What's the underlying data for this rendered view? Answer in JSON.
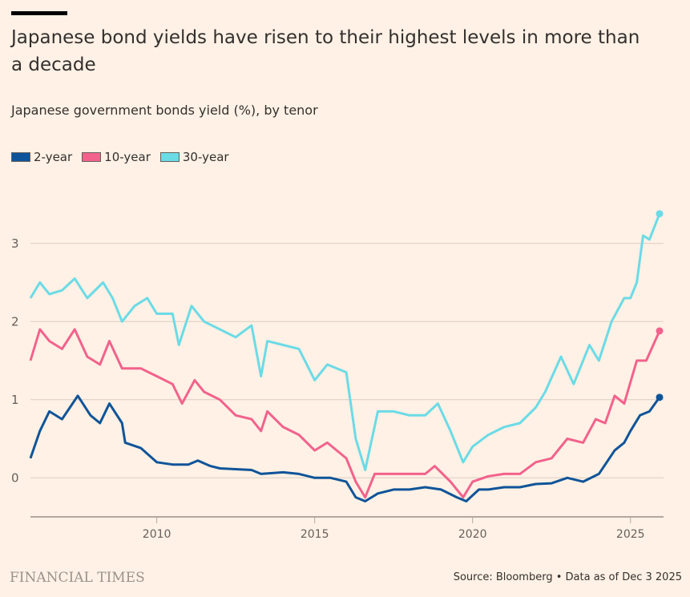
{
  "header": {
    "title": "Japanese bond yields have risen to their highest levels in more than a decade",
    "subtitle": "Japanese government bonds yield (%), by tenor"
  },
  "footer": {
    "brand": "FINANCIAL TIMES",
    "source": "Source: Bloomberg • Data as of Dec 3 2025"
  },
  "chart_data": {
    "type": "line",
    "title": "Japanese bond yields have risen to their highest levels in more than a decade",
    "ylabel": "Japanese government bonds yield (%)",
    "xlim": [
      2006.0,
      2025.92
    ],
    "ylim": [
      -0.5,
      3.5
    ],
    "xticks": [
      2010,
      2015,
      2020,
      2025
    ],
    "yticks": [
      0,
      1,
      2,
      3
    ],
    "grid": true,
    "legend": "top-left",
    "series": [
      {
        "name": "2-year",
        "color": "#0f5499",
        "points": [
          [
            2006.0,
            0.25
          ],
          [
            2006.3,
            0.6
          ],
          [
            2006.6,
            0.85
          ],
          [
            2007.0,
            0.75
          ],
          [
            2007.5,
            1.05
          ],
          [
            2007.9,
            0.8
          ],
          [
            2008.2,
            0.7
          ],
          [
            2008.5,
            0.95
          ],
          [
            2008.9,
            0.7
          ],
          [
            2009.0,
            0.45
          ],
          [
            2009.5,
            0.38
          ],
          [
            2010.0,
            0.2
          ],
          [
            2010.5,
            0.17
          ],
          [
            2011.0,
            0.17
          ],
          [
            2011.3,
            0.22
          ],
          [
            2011.7,
            0.15
          ],
          [
            2012.0,
            0.12
          ],
          [
            2013.0,
            0.1
          ],
          [
            2013.3,
            0.05
          ],
          [
            2014.0,
            0.07
          ],
          [
            2014.5,
            0.05
          ],
          [
            2015.0,
            0.0
          ],
          [
            2015.5,
            0.0
          ],
          [
            2016.0,
            -0.05
          ],
          [
            2016.3,
            -0.25
          ],
          [
            2016.6,
            -0.3
          ],
          [
            2017.0,
            -0.2
          ],
          [
            2017.5,
            -0.15
          ],
          [
            2018.0,
            -0.15
          ],
          [
            2018.5,
            -0.12
          ],
          [
            2019.0,
            -0.15
          ],
          [
            2019.5,
            -0.25
          ],
          [
            2019.8,
            -0.3
          ],
          [
            2020.2,
            -0.15
          ],
          [
            2020.5,
            -0.15
          ],
          [
            2021.0,
            -0.12
          ],
          [
            2021.5,
            -0.12
          ],
          [
            2022.0,
            -0.08
          ],
          [
            2022.5,
            -0.07
          ],
          [
            2023.0,
            0.0
          ],
          [
            2023.5,
            -0.05
          ],
          [
            2024.0,
            0.05
          ],
          [
            2024.5,
            0.35
          ],
          [
            2024.8,
            0.45
          ],
          [
            2025.0,
            0.6
          ],
          [
            2025.3,
            0.8
          ],
          [
            2025.6,
            0.85
          ],
          [
            2025.92,
            1.03
          ]
        ]
      },
      {
        "name": "10-year",
        "color": "#f2628c",
        "points": [
          [
            2006.0,
            1.5
          ],
          [
            2006.3,
            1.9
          ],
          [
            2006.6,
            1.75
          ],
          [
            2007.0,
            1.65
          ],
          [
            2007.4,
            1.9
          ],
          [
            2007.8,
            1.55
          ],
          [
            2008.2,
            1.45
          ],
          [
            2008.5,
            1.75
          ],
          [
            2008.9,
            1.4
          ],
          [
            2009.5,
            1.4
          ],
          [
            2010.0,
            1.3
          ],
          [
            2010.5,
            1.2
          ],
          [
            2010.8,
            0.95
          ],
          [
            2011.2,
            1.25
          ],
          [
            2011.5,
            1.1
          ],
          [
            2012.0,
            1.0
          ],
          [
            2012.5,
            0.8
          ],
          [
            2013.0,
            0.75
          ],
          [
            2013.3,
            0.6
          ],
          [
            2013.5,
            0.85
          ],
          [
            2014.0,
            0.65
          ],
          [
            2014.5,
            0.55
          ],
          [
            2015.0,
            0.35
          ],
          [
            2015.4,
            0.45
          ],
          [
            2016.0,
            0.25
          ],
          [
            2016.3,
            -0.05
          ],
          [
            2016.6,
            -0.25
          ],
          [
            2016.9,
            0.05
          ],
          [
            2017.5,
            0.05
          ],
          [
            2018.0,
            0.05
          ],
          [
            2018.5,
            0.05
          ],
          [
            2018.8,
            0.15
          ],
          [
            2019.3,
            -0.05
          ],
          [
            2019.7,
            -0.25
          ],
          [
            2020.0,
            -0.05
          ],
          [
            2020.5,
            0.02
          ],
          [
            2021.0,
            0.05
          ],
          [
            2021.5,
            0.05
          ],
          [
            2022.0,
            0.2
          ],
          [
            2022.5,
            0.25
          ],
          [
            2023.0,
            0.5
          ],
          [
            2023.5,
            0.45
          ],
          [
            2023.9,
            0.75
          ],
          [
            2024.2,
            0.7
          ],
          [
            2024.5,
            1.05
          ],
          [
            2024.8,
            0.95
          ],
          [
            2025.2,
            1.5
          ],
          [
            2025.5,
            1.5
          ],
          [
            2025.92,
            1.88
          ]
        ]
      },
      {
        "name": "30-year",
        "color": "#6bdbe6",
        "points": [
          [
            2006.0,
            2.3
          ],
          [
            2006.3,
            2.5
          ],
          [
            2006.6,
            2.35
          ],
          [
            2007.0,
            2.4
          ],
          [
            2007.4,
            2.55
          ],
          [
            2007.8,
            2.3
          ],
          [
            2008.3,
            2.5
          ],
          [
            2008.6,
            2.3
          ],
          [
            2008.9,
            2.0
          ],
          [
            2009.3,
            2.2
          ],
          [
            2009.7,
            2.3
          ],
          [
            2010.0,
            2.1
          ],
          [
            2010.5,
            2.1
          ],
          [
            2010.7,
            1.7
          ],
          [
            2011.1,
            2.2
          ],
          [
            2011.5,
            2.0
          ],
          [
            2012.0,
            1.9
          ],
          [
            2012.5,
            1.8
          ],
          [
            2013.0,
            1.95
          ],
          [
            2013.3,
            1.3
          ],
          [
            2013.5,
            1.75
          ],
          [
            2014.0,
            1.7
          ],
          [
            2014.5,
            1.65
          ],
          [
            2015.0,
            1.25
          ],
          [
            2015.4,
            1.45
          ],
          [
            2016.0,
            1.35
          ],
          [
            2016.3,
            0.5
          ],
          [
            2016.6,
            0.1
          ],
          [
            2017.0,
            0.85
          ],
          [
            2017.5,
            0.85
          ],
          [
            2018.0,
            0.8
          ],
          [
            2018.5,
            0.8
          ],
          [
            2018.9,
            0.95
          ],
          [
            2019.3,
            0.6
          ],
          [
            2019.7,
            0.2
          ],
          [
            2020.0,
            0.4
          ],
          [
            2020.5,
            0.55
          ],
          [
            2021.0,
            0.65
          ],
          [
            2021.5,
            0.7
          ],
          [
            2022.0,
            0.9
          ],
          [
            2022.3,
            1.1
          ],
          [
            2022.8,
            1.55
          ],
          [
            2023.2,
            1.2
          ],
          [
            2023.7,
            1.7
          ],
          [
            2024.0,
            1.5
          ],
          [
            2024.4,
            2.0
          ],
          [
            2024.8,
            2.3
          ],
          [
            2025.0,
            2.3
          ],
          [
            2025.2,
            2.5
          ],
          [
            2025.4,
            3.1
          ],
          [
            2025.6,
            3.05
          ],
          [
            2025.92,
            3.38
          ]
        ]
      }
    ]
  }
}
